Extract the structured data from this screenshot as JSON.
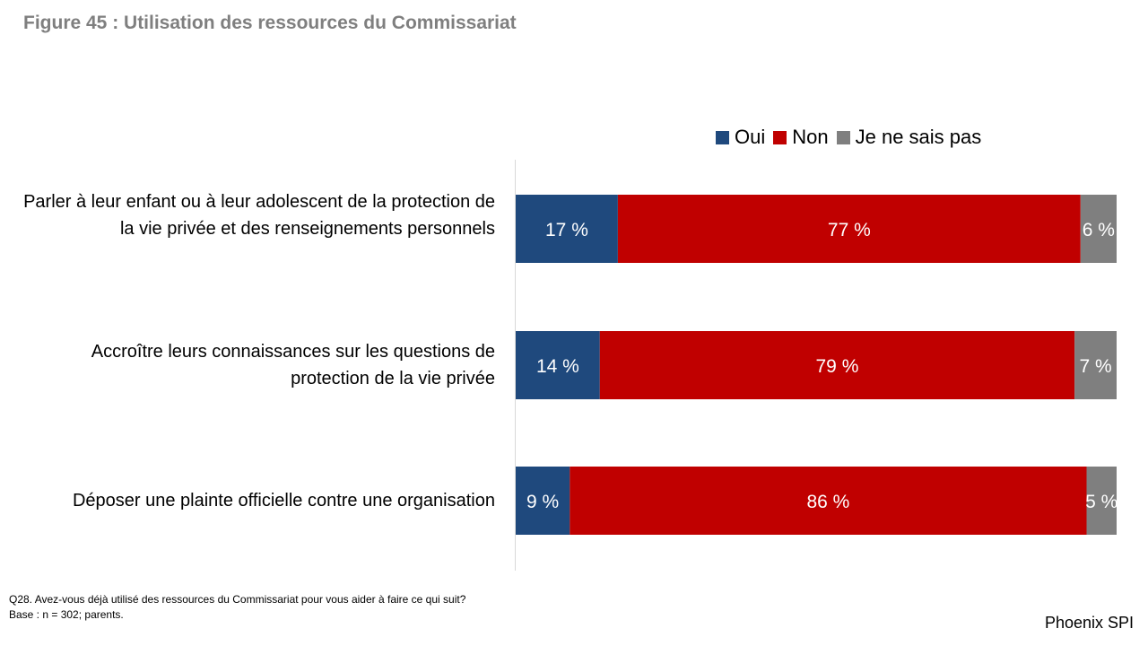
{
  "title": "Figure 45 : Utilisation des ressources du Commissariat",
  "chart_data": {
    "type": "bar",
    "orientation": "horizontal",
    "stacked": true,
    "title": "Figure 45 : Utilisation des ressources du Commissariat",
    "categories": [
      "Parler à leur enfant ou à leur adolescent de la protection de la vie privée et des renseignements personnels",
      "Accroître leurs connaissances sur les questions de protection de la vie privée",
      "Déposer une plainte officielle contre une organisation"
    ],
    "series": [
      {
        "name": "Oui",
        "color": "#1f497d",
        "values": [
          17,
          14,
          9
        ],
        "labels": [
          "17 %",
          "14 %",
          "9 %"
        ]
      },
      {
        "name": "Non",
        "color": "#c00000",
        "values": [
          77,
          79,
          86
        ],
        "labels": [
          "77 %",
          "79 %",
          "86 %"
        ]
      },
      {
        "name": "Je ne sais pas",
        "color": "#7f7f7f",
        "values": [
          6,
          7,
          5
        ],
        "labels": [
          "6 %",
          "7 %",
          "5 %"
        ]
      }
    ],
    "xlim": [
      0,
      100
    ],
    "legend_position": "top",
    "grid": false
  },
  "footnote": {
    "question": "Q28. Avez-vous déjà utilisé des ressources du Commissariat pour vous aider à faire ce qui suit?",
    "base": "Base : n = 302; parents."
  },
  "brand": "Phoenix SPI"
}
